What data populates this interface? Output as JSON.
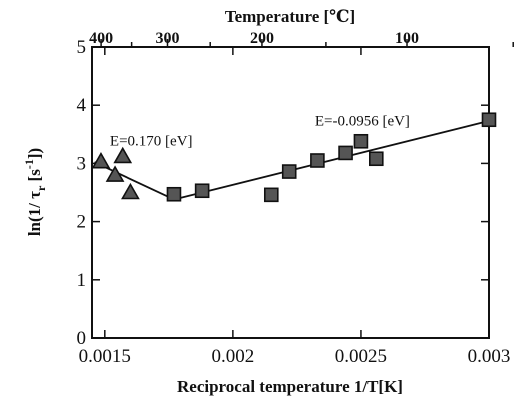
{
  "chart_data": {
    "type": "scatter",
    "title": "",
    "xlabel": "Reciprocal temperature 1/T[K]",
    "ylabel": "ln(1/ τ_r [s^-1])",
    "ylabel_parts": {
      "prefix": "ln(1/ τ",
      "sub": "r",
      "mid": " [s",
      "sup": "-1",
      "suffix": "])"
    },
    "top_xlabel": "Temperature [℃]",
    "xlim": [
      0.00145,
      0.003
    ],
    "ylim": [
      0,
      5
    ],
    "grid": false,
    "x_ticks": [
      {
        "value": 0.0015,
        "label": "0.0015"
      },
      {
        "value": 0.002,
        "label": "0.002"
      },
      {
        "value": 0.0025,
        "label": "0.0025"
      },
      {
        "value": 0.003,
        "label": "0.003"
      }
    ],
    "y_ticks": [
      {
        "value": 0,
        "label": "0"
      },
      {
        "value": 1,
        "label": "1"
      },
      {
        "value": 2,
        "label": "2"
      },
      {
        "value": 3,
        "label": "3"
      },
      {
        "value": 4,
        "label": "4"
      },
      {
        "value": 5,
        "label": "5"
      }
    ],
    "top_ticks": [
      {
        "value": 400,
        "label": "400"
      },
      {
        "value": 350,
        "label": ""
      },
      {
        "value": 300,
        "label": "300"
      },
      {
        "value": 250,
        "label": ""
      },
      {
        "value": 200,
        "label": "200"
      },
      {
        "value": 150,
        "label": ""
      },
      {
        "value": 100,
        "label": "100"
      },
      {
        "value": 50,
        "label": ""
      }
    ],
    "series": [
      {
        "marker": "triangle",
        "points": [
          {
            "x": 0.001485,
            "y": 3.03
          },
          {
            "x": 0.00154,
            "y": 2.8
          },
          {
            "x": 0.00157,
            "y": 3.12
          },
          {
            "x": 0.0016,
            "y": 2.5
          }
        ]
      },
      {
        "marker": "square",
        "points": [
          {
            "x": 0.00177,
            "y": 2.47
          },
          {
            "x": 0.00188,
            "y": 2.53
          },
          {
            "x": 0.00215,
            "y": 2.46
          },
          {
            "x": 0.00222,
            "y": 2.86
          },
          {
            "x": 0.00233,
            "y": 3.05
          },
          {
            "x": 0.00244,
            "y": 3.18
          },
          {
            "x": 0.0025,
            "y": 3.38
          },
          {
            "x": 0.00256,
            "y": 3.08
          },
          {
            "x": 0.003,
            "y": 3.75
          }
        ]
      }
    ],
    "fit_lines": [
      {
        "points": [
          {
            "x": 0.00146,
            "y": 3.02
          },
          {
            "x": 0.00177,
            "y": 2.38
          }
        ]
      },
      {
        "points": [
          {
            "x": 0.00177,
            "y": 2.38
          },
          {
            "x": 0.003,
            "y": 3.73
          }
        ]
      }
    ],
    "annotations": [
      {
        "text": "E=0.170 [eV]",
        "x": 0.00152,
        "y": 3.31
      },
      {
        "text": "E=-0.0956 [eV]",
        "x": 0.00232,
        "y": 3.65
      }
    ]
  }
}
